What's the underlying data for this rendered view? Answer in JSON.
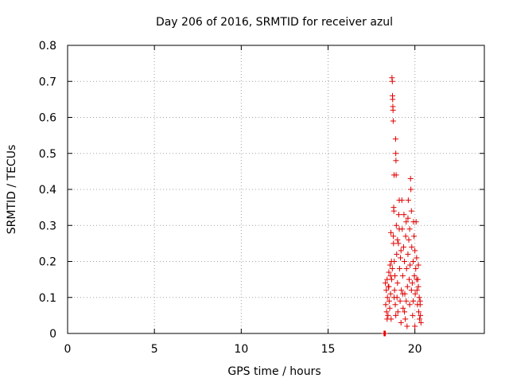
{
  "chart_data": {
    "type": "scatter",
    "title": "Day 206 of 2016, SRMTID for receiver azul",
    "xlabel": "GPS time / hours",
    "ylabel": "SRMTID / TECUs",
    "xlim": [
      0,
      24
    ],
    "ylim": [
      0,
      0.8
    ],
    "x_ticks": [
      0,
      5,
      10,
      15,
      20
    ],
    "x_tick_labels": [
      "0",
      "5",
      "10",
      "15",
      "20"
    ],
    "y_ticks": [
      0,
      0.1,
      0.2,
      0.3,
      0.4,
      0.5,
      0.6,
      0.7,
      0.8
    ],
    "y_tick_labels": [
      "0",
      "0.1",
      "0.2",
      "0.3",
      "0.4",
      "0.5",
      "0.6",
      "0.7",
      "0.8"
    ],
    "grid": true,
    "marker": "plus",
    "color": "#e00000",
    "series": [
      {
        "name": "SRMTID",
        "points": [
          [
            18.22,
            0.0
          ],
          [
            18.25,
            0.0
          ],
          [
            18.28,
            0.0
          ],
          [
            18.3,
            0.0
          ],
          [
            18.3,
            0.14
          ],
          [
            18.32,
            0.08
          ],
          [
            18.35,
            0.12
          ],
          [
            18.37,
            0.06
          ],
          [
            18.4,
            0.15
          ],
          [
            18.42,
            0.1
          ],
          [
            18.45,
            0.05
          ],
          [
            18.47,
            0.13
          ],
          [
            18.5,
            0.17
          ],
          [
            18.52,
            0.09
          ],
          [
            18.55,
            0.07
          ],
          [
            18.57,
            0.19
          ],
          [
            18.6,
            0.11
          ],
          [
            18.62,
            0.28
          ],
          [
            18.63,
            0.04
          ],
          [
            18.65,
            0.2
          ],
          [
            18.66,
            0.15
          ],
          [
            18.68,
            0.71
          ],
          [
            18.7,
            0.7
          ],
          [
            18.71,
            0.66
          ],
          [
            18.72,
            0.65
          ],
          [
            18.73,
            0.63
          ],
          [
            18.74,
            0.62
          ],
          [
            18.75,
            0.59
          ],
          [
            18.76,
            0.27
          ],
          [
            18.77,
            0.25
          ],
          [
            18.78,
            0.35
          ],
          [
            18.79,
            0.34
          ],
          [
            18.8,
            0.44
          ],
          [
            18.81,
            0.2
          ],
          [
            18.83,
            0.12
          ],
          [
            18.85,
            0.16
          ],
          [
            18.87,
            0.08
          ],
          [
            18.89,
            0.54
          ],
          [
            18.9,
            0.5
          ],
          [
            18.91,
            0.48
          ],
          [
            18.92,
            0.44
          ],
          [
            18.93,
            0.3
          ],
          [
            18.95,
            0.22
          ],
          [
            18.97,
            0.1
          ],
          [
            19.0,
            0.14
          ],
          [
            19.02,
            0.06
          ],
          [
            19.05,
            0.25
          ],
          [
            19.07,
            0.33
          ],
          [
            19.1,
            0.37
          ],
          [
            19.12,
            0.18
          ],
          [
            19.15,
            0.09
          ],
          [
            19.17,
            0.21
          ],
          [
            19.2,
            0.03
          ],
          [
            19.22,
            0.12
          ],
          [
            19.25,
            0.37
          ],
          [
            19.27,
            0.29
          ],
          [
            19.3,
            0.16
          ],
          [
            19.32,
            0.07
          ],
          [
            19.35,
            0.24
          ],
          [
            19.37,
            0.33
          ],
          [
            19.4,
            0.2
          ],
          [
            19.42,
            0.11
          ],
          [
            19.45,
            0.04
          ],
          [
            19.47,
            0.27
          ],
          [
            19.5,
            0.31
          ],
          [
            19.52,
            0.18
          ],
          [
            19.55,
            0.02
          ],
          [
            19.57,
            0.13
          ],
          [
            19.6,
            0.22
          ],
          [
            19.62,
            0.37
          ],
          [
            19.65,
            0.26
          ],
          [
            19.67,
            0.15
          ],
          [
            19.7,
            0.08
          ],
          [
            19.72,
            0.19
          ],
          [
            19.75,
            0.43
          ],
          [
            19.77,
            0.4
          ],
          [
            19.8,
            0.34
          ],
          [
            19.82,
            0.24
          ],
          [
            19.85,
            0.14
          ],
          [
            19.87,
            0.05
          ],
          [
            19.9,
            0.2
          ],
          [
            19.92,
            0.31
          ],
          [
            19.95,
            0.27
          ],
          [
            19.97,
            0.16
          ],
          [
            20.0,
            0.23
          ],
          [
            20.02,
            0.11
          ],
          [
            20.05,
            0.18
          ],
          [
            20.07,
            0.31
          ],
          [
            20.1,
            0.21
          ],
          [
            20.12,
            0.12
          ],
          [
            20.15,
            0.08
          ],
          [
            20.17,
            0.15
          ],
          [
            20.2,
            0.19
          ],
          [
            20.22,
            0.06
          ],
          [
            20.25,
            0.1
          ],
          [
            20.27,
            0.04
          ],
          [
            20.3,
            0.09
          ],
          [
            20.32,
            0.05
          ],
          [
            20.35,
            0.03
          ],
          [
            18.5,
            0.13
          ],
          [
            18.6,
            0.16
          ],
          [
            18.7,
            0.18
          ],
          [
            18.8,
            0.1
          ],
          [
            18.9,
            0.05
          ],
          [
            19.0,
            0.26
          ],
          [
            19.1,
            0.29
          ],
          [
            19.2,
            0.23
          ],
          [
            19.3,
            0.11
          ],
          [
            19.4,
            0.06
          ],
          [
            19.5,
            0.09
          ],
          [
            19.6,
            0.32
          ],
          [
            19.7,
            0.29
          ],
          [
            19.8,
            0.12
          ],
          [
            19.9,
            0.09
          ],
          [
            20.0,
            0.02
          ],
          [
            20.1,
            0.15
          ],
          [
            20.2,
            0.13
          ],
          [
            20.3,
            0.08
          ],
          [
            18.4,
            0.04
          ]
        ]
      }
    ]
  }
}
